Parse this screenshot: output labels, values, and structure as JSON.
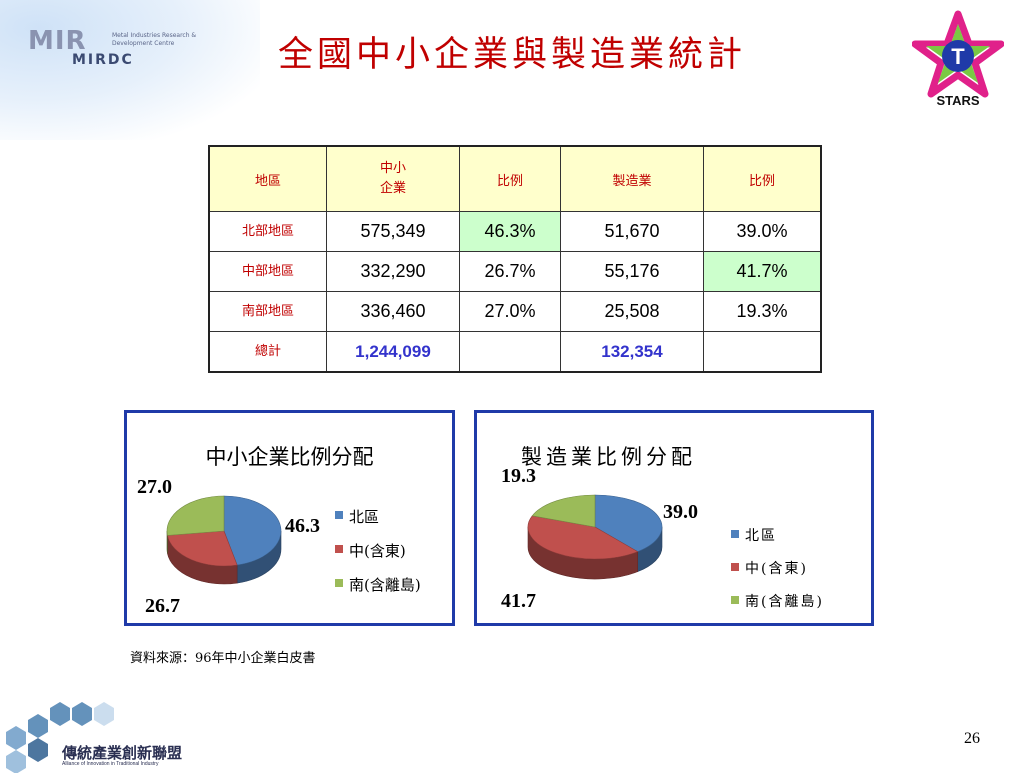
{
  "header": {
    "title": "全國中小企業與製造業統計",
    "logo_left_main": "MIR",
    "logo_left_sub": "MIRDC",
    "logo_left_caption": "Metal Industries Research & Development Centre",
    "logo_right_letter": "T",
    "logo_right_label": "STARS"
  },
  "table": {
    "headers": [
      "地區",
      "中小\n企業",
      "比例",
      "製造業",
      "比例"
    ],
    "rows": [
      {
        "region": "北部地區",
        "sme": "575,349",
        "sme_pct": "46.3%",
        "mfg": "51,670",
        "mfg_pct": "39.0%"
      },
      {
        "region": "中部地區",
        "sme": "332,290",
        "sme_pct": "26.7%",
        "mfg": "55,176",
        "mfg_pct": "41.7%"
      },
      {
        "region": "南部地區",
        "sme": "336,460",
        "sme_pct": "27.0%",
        "mfg": "25,508",
        "mfg_pct": "19.3%"
      }
    ],
    "total": {
      "region": "總計",
      "sme": "1,244,099",
      "mfg": "132,354"
    },
    "highlight_color": "#ccffcc",
    "header_color": "#ffffcc"
  },
  "chart_data": [
    {
      "type": "pie",
      "title": "中小企業比例分配",
      "categories": [
        "北區",
        "中(含東)",
        "南(含離島)"
      ],
      "values": [
        46.3,
        26.7,
        27.0
      ],
      "data_labels": [
        "46.3",
        "26.7",
        "27.0"
      ],
      "colors": [
        "#4f81bd",
        "#c0504d",
        "#9bbb59"
      ],
      "legend_position": "right"
    },
    {
      "type": "pie",
      "title": "製造業比例分配",
      "categories": [
        "北區",
        "中(含東)",
        "南(含離島)"
      ],
      "values": [
        39.0,
        41.7,
        19.3
      ],
      "data_labels": [
        "39.0",
        "41.7",
        "19.3"
      ],
      "colors": [
        "#4f81bd",
        "#c0504d",
        "#9bbb59"
      ],
      "legend_position": "right"
    }
  ],
  "footer": {
    "source": "資料來源：96年中小企業白皮書",
    "org_name": "傳統產業創新聯盟",
    "org_sub": "Alliance of Innovation in Traditional Industry",
    "page_number": "26"
  }
}
